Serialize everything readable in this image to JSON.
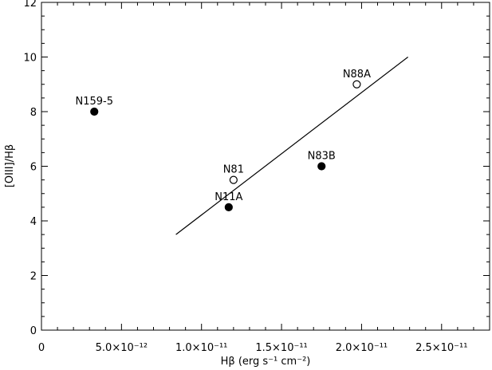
{
  "chart_data": {
    "type": "scatter",
    "title": "",
    "xlabel": "Hβ (erg s⁻¹ cm⁻²)",
    "ylabel": "[OIII]/Hβ",
    "xlim": [
      0,
      2.8e-11
    ],
    "ylim": [
      0,
      12
    ],
    "grid": false,
    "x_ticks": [
      {
        "value": 0,
        "label": "0"
      },
      {
        "value": 5e-12,
        "label": "5.0×10⁻¹²"
      },
      {
        "value": 1e-11,
        "label": "1.0×10⁻¹¹"
      },
      {
        "value": 1.5e-11,
        "label": "1.5×10⁻¹¹"
      },
      {
        "value": 2e-11,
        "label": "2.0×10⁻¹¹"
      },
      {
        "value": 2.5e-11,
        "label": "2.5×10⁻¹¹"
      }
    ],
    "y_ticks": [
      {
        "value": 0,
        "label": "0"
      },
      {
        "value": 2,
        "label": "2"
      },
      {
        "value": 4,
        "label": "4"
      },
      {
        "value": 6,
        "label": "6"
      },
      {
        "value": 8,
        "label": "8"
      },
      {
        "value": 10,
        "label": "10"
      },
      {
        "value": 12,
        "label": "12"
      }
    ],
    "points": [
      {
        "label": "N159-5",
        "x": 3.3e-12,
        "y": 8.0,
        "filled": true
      },
      {
        "label": "N11A",
        "x": 1.17e-11,
        "y": 4.5,
        "filled": true
      },
      {
        "label": "N81",
        "x": 1.2e-11,
        "y": 5.5,
        "filled": false
      },
      {
        "label": "N83B",
        "x": 1.75e-11,
        "y": 6.0,
        "filled": true
      },
      {
        "label": "N88A",
        "x": 1.97e-11,
        "y": 9.0,
        "filled": false
      }
    ],
    "fit_line": {
      "x": [
        8.4e-12,
        2.29e-11
      ],
      "y": [
        3.5,
        10.0
      ]
    }
  }
}
